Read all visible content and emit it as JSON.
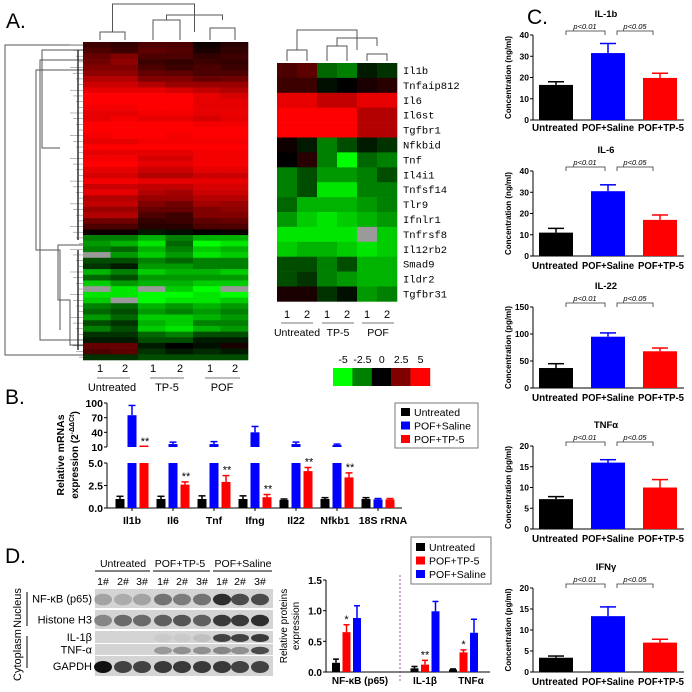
{
  "panels": {
    "a": "A.",
    "b": "B.",
    "c": "C.",
    "d": "D."
  },
  "colors": {
    "untreated": "#000000",
    "saline": "#0000ff",
    "tp5": "#ff0000",
    "divider": "#a050a0",
    "missing": "#9a9a9a"
  },
  "color_scale": {
    "ticks": [
      "-5",
      "-2.5",
      "0",
      "2.5",
      "5"
    ],
    "values": [
      -5,
      -2.5,
      0,
      2.5,
      5
    ]
  },
  "chart_data": [
    {
      "type": "heatmap",
      "column_labels": [
        "1",
        "2",
        "1",
        "2",
        "1",
        "2"
      ],
      "groups": [
        {
          "label": "Untreated"
        },
        {
          "label": "TP-5"
        },
        {
          "label": "POF"
        }
      ],
      "colormap": "green-black-red",
      "range": [
        -5,
        5
      ],
      "rows": [
        [
          1.2,
          1.0,
          1.5,
          1.5,
          0.3,
          0.8
        ],
        [
          1.5,
          1.2,
          1.8,
          1.6,
          0.5,
          1.0
        ],
        [
          2.0,
          2.5,
          1.5,
          1.5,
          1.0,
          1.2
        ],
        [
          2.2,
          2.8,
          1.2,
          1.0,
          1.2,
          1.0
        ],
        [
          2.5,
          2.5,
          1.5,
          1.2,
          1.5,
          1.2
        ],
        [
          2.8,
          2.8,
          2.0,
          1.8,
          1.5,
          1.5
        ],
        [
          3.5,
          3.5,
          2.5,
          2.5,
          2.0,
          2.2
        ],
        [
          4.0,
          4.0,
          3.5,
          3.0,
          3.0,
          3.0
        ],
        [
          4.5,
          4.5,
          4.5,
          4.2,
          3.8,
          3.5
        ],
        [
          5,
          5,
          5,
          5,
          4.5,
          4.2
        ],
        [
          5,
          5,
          5,
          5,
          4.5,
          4.5
        ],
        [
          4.8,
          4.8,
          5,
          5,
          4.5,
          4.5
        ],
        [
          4.5,
          4.5,
          4.8,
          4.8,
          4.5,
          4.6
        ],
        [
          4.5,
          4.8,
          4.5,
          4.5,
          4.2,
          4.5
        ],
        [
          5,
          5,
          5,
          5,
          4.8,
          4.8
        ],
        [
          5,
          5,
          5,
          5,
          5,
          5
        ],
        [
          4.8,
          5,
          5,
          4.8,
          5,
          5
        ],
        [
          4.5,
          4.5,
          4.8,
          4.8,
          4.8,
          4.8
        ],
        [
          5,
          5,
          5,
          5,
          5,
          5
        ],
        [
          4.5,
          4.5,
          4.5,
          4.5,
          4.8,
          4.8
        ],
        [
          4.8,
          4.8,
          4.2,
          4.2,
          4.8,
          4.8
        ],
        [
          5,
          5,
          4.5,
          4.5,
          4.8,
          4.8
        ],
        [
          4.5,
          4.5,
          4.0,
          4.0,
          4.5,
          4.5
        ],
        [
          4.2,
          4.2,
          3.5,
          3.5,
          4.0,
          4.0
        ],
        [
          4.8,
          4.8,
          4.5,
          4.5,
          4.5,
          4.5
        ],
        [
          4.0,
          4.0,
          3.8,
          3.8,
          4.2,
          4.2
        ],
        [
          4.5,
          4.5,
          3.5,
          3.2,
          4.0,
          4.0
        ],
        [
          3.5,
          3.5,
          3.0,
          3.0,
          3.5,
          3.5
        ],
        [
          3.8,
          3.8,
          2.5,
          2.2,
          3.2,
          3.0
        ],
        [
          3.0,
          3.0,
          2.0,
          2.0,
          2.5,
          2.8
        ],
        [
          3.5,
          3.5,
          1.5,
          1.2,
          2.5,
          2.5
        ],
        [
          2.2,
          2.2,
          1.0,
          1.2,
          1.8,
          2.0
        ],
        [
          1.5,
          1.5,
          0.8,
          0.8,
          1.5,
          1.5
        ],
        [
          0.3,
          0.3,
          -0.5,
          -0.3,
          0,
          0.2
        ],
        [
          -2.5,
          -2.5,
          -3.5,
          -2.5,
          -3.5,
          -3.5
        ],
        [
          -3.0,
          -3.5,
          -4.5,
          -2.0,
          -5,
          -4.5
        ],
        [
          -2.5,
          -2.0,
          -3.5,
          -2.5,
          -4.0,
          -3.5
        ],
        [
          null,
          -3.0,
          -4.0,
          -3.0,
          -4.5,
          -4.0
        ],
        [
          -1.5,
          -1.5,
          -2.5,
          -2.0,
          -2.5,
          -2.5
        ],
        [
          -1.0,
          -0.5,
          -3.0,
          -3.0,
          -2.5,
          -2.5
        ],
        [
          -3.5,
          -2.5,
          -4.0,
          -3.5,
          -3.5,
          -4.0
        ],
        [
          -2.0,
          -1.5,
          -3.0,
          -3.0,
          -3.0,
          -3.0
        ],
        [
          -4.0,
          -3.0,
          -3.5,
          -3.5,
          -4.0,
          -4.0
        ],
        [
          null,
          -4.5,
          null,
          -4.0,
          -5,
          null
        ],
        [
          -4.5,
          -4.5,
          -5,
          -5,
          -4.5,
          -5
        ],
        [
          -4.0,
          null,
          -5,
          -4.5,
          -4.5,
          -4.0
        ],
        [
          -2.5,
          -2.0,
          -3.5,
          -3.0,
          -3.5,
          -3.0
        ],
        [
          -2.0,
          -1.5,
          -3.0,
          -2.5,
          -3.0,
          -2.5
        ],
        [
          -3.0,
          -2.0,
          -4.0,
          -4.0,
          -3.5,
          -3.0
        ],
        [
          -1.5,
          -1.0,
          -3.5,
          -4.0,
          -2.5,
          -2.5
        ],
        [
          -2.5,
          -1.5,
          -4.0,
          -4.5,
          -3.5,
          -3.0
        ],
        [
          -1.0,
          -1.0,
          -2.0,
          -2.5,
          -1.5,
          -1.5
        ],
        [
          -0.5,
          -0.5,
          -1.5,
          -1.5,
          -0.5,
          -0.5
        ],
        [
          2.0,
          2.0,
          -0.5,
          0,
          -0.3,
          0.5
        ],
        [
          1.5,
          1.8,
          -1.0,
          -0.5,
          -0.8,
          -0.5
        ],
        [
          -1.0,
          -1.0,
          -1.5,
          -1.5,
          -1.5,
          -1.5
        ]
      ]
    },
    {
      "type": "heatmap",
      "column_labels": [
        "1",
        "2",
        "1",
        "2",
        "1",
        "2"
      ],
      "groups": [
        {
          "label": "Untreated"
        },
        {
          "label": "TP-5"
        },
        {
          "label": "POF"
        }
      ],
      "colormap": "green-black-red",
      "range": [
        -5,
        5
      ],
      "genes": [
        "Il1b",
        "Tnfaip812",
        "Il6",
        "Il6st",
        "Tgfbr1",
        "Nfkbid",
        "Tnf",
        "Il4i1",
        "Tnfsf14",
        "Tlr9",
        "Ifnlr1",
        "Tnfrsf8",
        "Il12rb2",
        "Smad9",
        "Ildr2",
        "Tgfbr31"
      ],
      "rows": [
        [
          1.5,
          1.8,
          -2,
          -2.5,
          -0.5,
          -1
        ],
        [
          1.2,
          1.2,
          -0.3,
          0,
          0.5,
          0.8
        ],
        [
          4.5,
          4.5,
          3.8,
          3.8,
          4.5,
          4.5
        ],
        [
          5,
          5,
          5,
          5,
          3.5,
          3.5
        ],
        [
          5,
          5,
          5,
          5,
          3.5,
          3.5
        ],
        [
          0.3,
          -0.5,
          -2.5,
          -1.5,
          -0.5,
          -1
        ],
        [
          0,
          0.8,
          -2.5,
          -5,
          -2,
          -2.5
        ],
        [
          -2.5,
          -1.5,
          -3,
          -3,
          -2.5,
          -1.5
        ],
        [
          -2.5,
          -1.5,
          -4.5,
          -4.5,
          -2.5,
          -2.5
        ],
        [
          -2,
          -3.5,
          -3.5,
          -3.5,
          -3,
          -2.5
        ],
        [
          -3,
          -4,
          -4.5,
          -4,
          -3.5,
          -3
        ],
        [
          -4.5,
          -4.5,
          -4.5,
          -4.5,
          null,
          -4
        ],
        [
          -4,
          -3.5,
          -3.5,
          -4,
          -4.5,
          -4
        ],
        [
          -1.5,
          -1.5,
          -2.5,
          -1.5,
          -3.5,
          -3.5
        ],
        [
          -1.5,
          -1,
          -2.5,
          -3,
          -3.5,
          -3.5
        ],
        [
          0.5,
          0.5,
          -1,
          -0.3,
          -3,
          -2.5
        ]
      ]
    },
    {
      "type": "bar",
      "ylabel_line1": "Relative mRNAs",
      "ylabel_line2": "expression (2",
      "ylabel_sup": "-ΔΔCt",
      "ylabel_close": ")",
      "categories": [
        "Il1b",
        "Il6",
        "Tnf",
        "Ifng",
        "Il22",
        "Nfkb1",
        "18S rRNA"
      ],
      "axis_break": {
        "lower": [
          0,
          5
        ],
        "upper": [
          10,
          100
        ]
      },
      "yticks_lower": [
        "0.0",
        "2.5",
        "5.0"
      ],
      "yticks_lower_values": [
        0,
        2.5,
        5
      ],
      "yticks_upper": [
        "10",
        "40",
        "70",
        "100"
      ],
      "yticks_upper_values": [
        10,
        40,
        70,
        100
      ],
      "legend": {
        "position": "top-right"
      },
      "series": [
        {
          "name": "Untreated",
          "color": "#000000",
          "values": [
            1.0,
            1.0,
            1.0,
            1.0,
            0.9,
            1.0,
            1.0
          ],
          "errors": [
            0.3,
            0.3,
            0.35,
            0.35,
            0.1,
            0.15,
            0.15
          ]
        },
        {
          "name": "POF+Saline",
          "color": "#0000ff",
          "values": [
            75,
            16,
            16,
            40,
            16,
            14,
            0.95
          ],
          "errors": [
            20,
            4,
            5,
            12,
            4,
            2,
            0.1
          ]
        },
        {
          "name": "POF+TP-5",
          "color": "#ff0000",
          "values": [
            10,
            2.6,
            2.9,
            1.2,
            4.1,
            3.4,
            0.95
          ],
          "errors": [
            0.5,
            0.3,
            0.7,
            0.3,
            0.4,
            0.5,
            0.1
          ]
        }
      ],
      "annotations": [
        "**",
        "**",
        "**",
        "**",
        "**",
        "**",
        ""
      ]
    },
    {
      "type": "bar",
      "title": "IL-1b",
      "ylabel": "Concentration (ng/ml)",
      "categories": [
        "Untreated",
        "POF+Saline",
        "POF+TP-5"
      ],
      "colors": [
        "#000000",
        "#0000ff",
        "#ff0000"
      ],
      "values": [
        16.5,
        31.5,
        19.8
      ],
      "errors": [
        1.5,
        4.5,
        2.2
      ],
      "ylim": [
        0,
        40
      ],
      "yticks": [
        "0",
        "10",
        "20",
        "30",
        "40"
      ],
      "ytick_values": [
        0,
        10,
        20,
        30,
        40
      ],
      "comparisons": [
        {
          "label": "p<0.01"
        },
        {
          "label": "p<0.05"
        }
      ]
    },
    {
      "type": "bar",
      "title": "IL-6",
      "ylabel": "Concentration (ng/ml)",
      "categories": [
        "Untreated",
        "POF+Saline",
        "POF+TP-5"
      ],
      "colors": [
        "#000000",
        "#0000ff",
        "#ff0000"
      ],
      "values": [
        11,
        30.5,
        17
      ],
      "errors": [
        2,
        3,
        2.3
      ],
      "ylim": [
        0,
        40
      ],
      "yticks": [
        "0",
        "10",
        "20",
        "30",
        "40"
      ],
      "ytick_values": [
        0,
        10,
        20,
        30,
        40
      ],
      "comparisons": [
        {
          "label": "p<0.01"
        },
        {
          "label": "p<0.05"
        }
      ]
    },
    {
      "type": "bar",
      "title": "IL-22",
      "ylabel": "Concentration (pg/ml)",
      "categories": [
        "Untreated",
        "POF+Saline",
        "POF+TP-5"
      ],
      "colors": [
        "#000000",
        "#0000ff",
        "#ff0000"
      ],
      "values": [
        37,
        95,
        68
      ],
      "errors": [
        8,
        7,
        6
      ],
      "ylim": [
        0,
        150
      ],
      "yticks": [
        "0",
        "50",
        "100",
        "150"
      ],
      "ytick_values": [
        0,
        50,
        100,
        150
      ],
      "comparisons": [
        {
          "label": "p<0.01"
        },
        {
          "label": "p<0.05"
        }
      ]
    },
    {
      "type": "bar",
      "title": "TNFα",
      "ylabel": "Concentration (pg/ml)",
      "categories": [
        "Untreated",
        "POF+Saline",
        "POF+TP-5"
      ],
      "colors": [
        "#000000",
        "#0000ff",
        "#ff0000"
      ],
      "values": [
        7.2,
        16,
        10
      ],
      "errors": [
        0.6,
        0.7,
        1.9
      ],
      "ylim": [
        0,
        20
      ],
      "yticks": [
        "0",
        "5",
        "10",
        "15",
        "20"
      ],
      "ytick_values": [
        0,
        5,
        10,
        15,
        20
      ],
      "comparisons": [
        {
          "label": "p<0.01"
        },
        {
          "label": "p<0.05"
        }
      ]
    },
    {
      "type": "bar",
      "title": "IFNγ",
      "ylabel": "Concentration (pg/ml)",
      "categories": [
        "Untreated",
        "POF+Saline",
        "POF+TP-5"
      ],
      "colors": [
        "#000000",
        "#0000ff",
        "#ff0000"
      ],
      "values": [
        3.4,
        13.3,
        7
      ],
      "errors": [
        0.4,
        2.2,
        0.8
      ],
      "ylim": [
        0,
        20
      ],
      "yticks": [
        "0",
        "5",
        "10",
        "15",
        "20"
      ],
      "ytick_values": [
        0,
        5,
        10,
        15,
        20
      ],
      "comparisons": [
        {
          "label": "p<0.01"
        },
        {
          "label": "p<0.05"
        }
      ]
    },
    {
      "type": "bar",
      "ylabel_line1": "Relative proteins",
      "ylabel_line2": "expression",
      "categories": [
        "NF-κB (p65)",
        "IL-1β",
        "TNFα"
      ],
      "ylim": [
        0,
        1.5
      ],
      "yticks": [
        "0.0",
        "0.5",
        "1.0",
        "1.5"
      ],
      "ytick_values": [
        0,
        0.5,
        1.0,
        1.5
      ],
      "legend": {
        "position": "top-right"
      },
      "series": [
        {
          "name": "Untreated",
          "color": "#000000",
          "values": [
            0.15,
            0.06,
            0.04
          ],
          "errors": [
            0.06,
            0.03,
            0.01
          ]
        },
        {
          "name": "POF+TP-5",
          "color": "#ff0000",
          "values": [
            0.65,
            0.12,
            0.32
          ],
          "errors": [
            0.12,
            0.07,
            0.04
          ]
        },
        {
          "name": "POF+Saline",
          "color": "#0000ff",
          "values": [
            0.88,
            0.99,
            0.64
          ],
          "errors": [
            0.2,
            0.16,
            0.22
          ]
        }
      ],
      "annotations": [
        "*",
        "**",
        "*"
      ]
    }
  ],
  "blot": {
    "groups": [
      "Untreated",
      "POF+TP-5",
      "POF+Saline"
    ],
    "lanes": [
      "1#",
      "2#",
      "3#",
      "1#",
      "2#",
      "3#",
      "1#",
      "2#",
      "3#"
    ],
    "rows": [
      "NF-κB (p65)",
      "Histone H3",
      "IL-1β",
      "TNF-α",
      "GAPDH"
    ],
    "fractions": [
      "Nucleus",
      "Cytoplasm"
    ]
  }
}
